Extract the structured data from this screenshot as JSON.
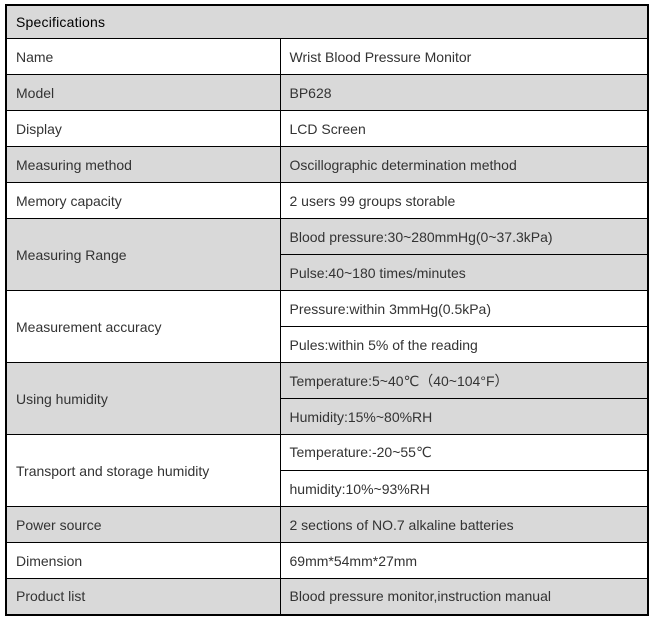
{
  "title": "Specifications",
  "colors": {
    "shaded_row": "#d9d9d9",
    "plain_row": "#ffffff",
    "border": "#000000",
    "text": "#333333"
  },
  "table": {
    "rows": [
      {
        "label": "Name",
        "values": [
          "Wrist Blood Pressure Monitor"
        ],
        "shaded": false
      },
      {
        "label": "Model",
        "values": [
          "BP628"
        ],
        "shaded": true
      },
      {
        "label": "Display",
        "values": [
          "LCD Screen"
        ],
        "shaded": false
      },
      {
        "label": "Measuring method",
        "values": [
          "Oscillographic determination method"
        ],
        "shaded": true
      },
      {
        "label": "Memory capacity",
        "values": [
          "2 users 99 groups storable"
        ],
        "shaded": false
      },
      {
        "label": "Measuring Range",
        "values": [
          "Blood pressure:30~280mmHg(0~37.3kPa)",
          "Pulse:40~180 times/minutes"
        ],
        "shaded": true
      },
      {
        "label": "Measurement accuracy",
        "values": [
          "Pressure:within 3mmHg(0.5kPa)",
          "Pules:within 5% of the reading"
        ],
        "shaded": false
      },
      {
        "label": "Using humidity",
        "values": [
          "Temperature:5~40℃（40~104°F）",
          "Humidity:15%~80%RH"
        ],
        "shaded": true
      },
      {
        "label": "Transport and storage humidity",
        "values": [
          "Temperature:-20~55℃",
          "humidity:10%~93%RH"
        ],
        "shaded": false
      },
      {
        "label": "Power source",
        "values": [
          "2 sections of NO.7 alkaline batteries"
        ],
        "shaded": true
      },
      {
        "label": "Dimension",
        "values": [
          "69mm*54mm*27mm"
        ],
        "shaded": false
      },
      {
        "label": "Product list",
        "values": [
          "Blood pressure monitor,instruction manual"
        ],
        "shaded": true
      }
    ]
  }
}
